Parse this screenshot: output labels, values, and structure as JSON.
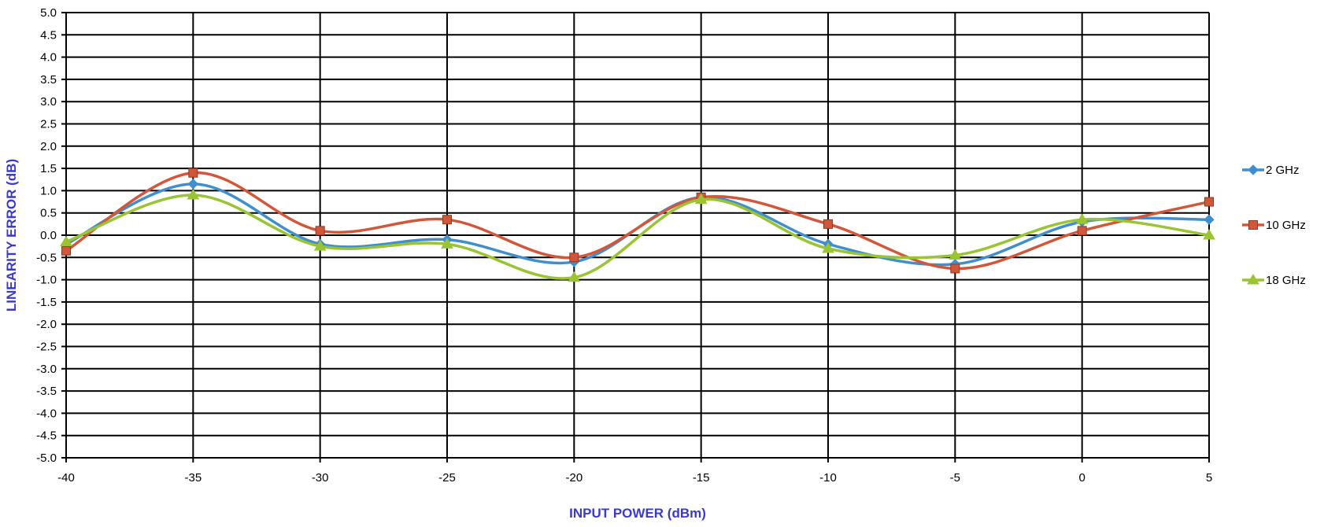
{
  "chart_data": {
    "type": "line",
    "title": "",
    "xlabel": "INPUT POWER (dBm)",
    "ylabel": "LINEARITY ERROR (dB)",
    "x": [
      -40,
      -35,
      -30,
      -25,
      -20,
      -15,
      -10,
      -5,
      0,
      5
    ],
    "x_tick_labels": [
      "-40",
      "-35",
      "-30",
      "-25",
      "-20",
      "-15",
      "-10",
      "-5",
      "0",
      "5"
    ],
    "y_tick_labels": [
      "5.0",
      "4.5",
      "4.0",
      "3.5",
      "3.0",
      "2.5",
      "2.0",
      "1.5",
      "1.0",
      "0.5",
      "0.0",
      "-0.5",
      "-1.0",
      "-1.5",
      "-2.0",
      "-2.5",
      "-3.0",
      "-3.5",
      "-4.0",
      "-4.5",
      "-5.0"
    ],
    "xlim": [
      -40,
      5
    ],
    "ylim": [
      -5,
      5
    ],
    "y_step": 0.5,
    "grid": true,
    "legend_position": "right",
    "axis_title_color": "#3a3acc",
    "series": [
      {
        "name": "2 GHz",
        "color": "#3f8fcf",
        "marker": "diamond",
        "values": [
          -0.2,
          1.15,
          -0.2,
          -0.1,
          -0.6,
          0.85,
          -0.2,
          -0.65,
          0.3,
          0.35
        ]
      },
      {
        "name": "10 GHz",
        "color": "#d2573a",
        "marker": "square",
        "values": [
          -0.35,
          1.4,
          0.1,
          0.35,
          -0.5,
          0.85,
          0.25,
          -0.75,
          0.1,
          0.75
        ]
      },
      {
        "name": "18 GHz",
        "color": "#9ac431",
        "marker": "triangle",
        "values": [
          -0.15,
          0.9,
          -0.25,
          -0.2,
          -0.95,
          0.8,
          -0.3,
          -0.45,
          0.35,
          0.0
        ]
      }
    ]
  }
}
